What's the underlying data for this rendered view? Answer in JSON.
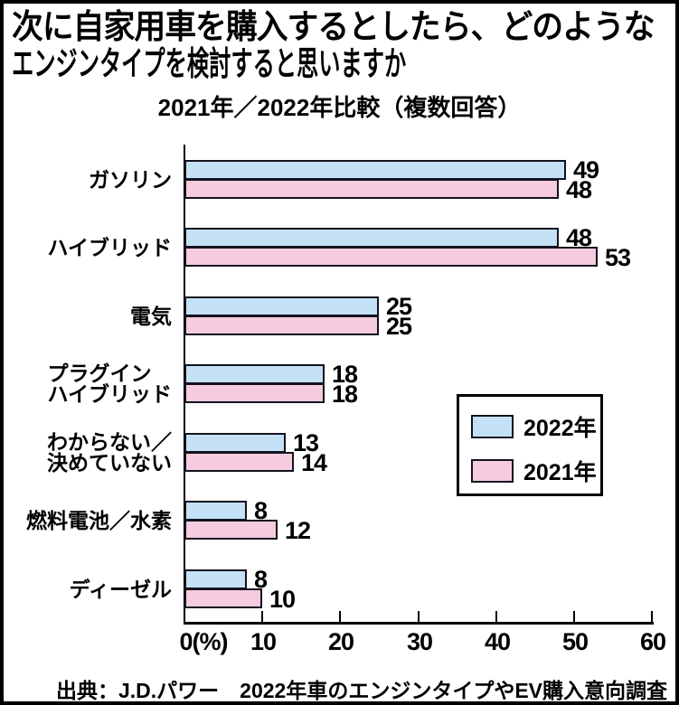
{
  "title": {
    "line1": "次に自家用車を購入するとしたら、どのような",
    "line2": "エンジンタイプを検討すると思いますか"
  },
  "subtitle": "2021年／2022年比較（複数回答）",
  "source": "出典：J.D.パワー　2022年車のエンジンタイプやEV購入意向調査",
  "legend": {
    "items": [
      {
        "label": "2022年",
        "color": "#c5e1f5"
      },
      {
        "label": "2021年",
        "color": "#f5cbdd"
      }
    ]
  },
  "chart_data": {
    "type": "bar",
    "orientation": "horizontal",
    "title": "次に自家用車を購入するとしたら、どのようなエンジンタイプを検討すると思いますか",
    "subtitle": "2021年／2022年比較（複数回答）",
    "categories": [
      "ガソリン",
      "ハイブリッド",
      "電気",
      "プラグインハイブリッド",
      "わからない／決めていない",
      "燃料電池／水素",
      "ディーゼル"
    ],
    "category_lines": [
      [
        "ガソリン"
      ],
      [
        "ハイブリッド"
      ],
      [
        "電気"
      ],
      [
        "プラグイン",
        "ハイブリッド"
      ],
      [
        "わからない／",
        "決めていない"
      ],
      [
        "燃料電池／水素"
      ],
      [
        "ディーゼル"
      ]
    ],
    "category_slugs": [
      "gasoline",
      "hybrid",
      "electric",
      "plugin-hybrid",
      "undecided",
      "fuel-cell-hydrogen",
      "diesel"
    ],
    "series": [
      {
        "name": "2022年",
        "color": "#c5e1f5",
        "values": [
          49,
          48,
          25,
          18,
          13,
          8,
          8
        ]
      },
      {
        "name": "2021年",
        "color": "#f5cbdd",
        "values": [
          48,
          53,
          25,
          18,
          14,
          12,
          10
        ]
      }
    ],
    "value_labels": true,
    "xlabel": "0(%)",
    "xlim": [
      0,
      60
    ],
    "x_ticks": [
      {
        "value": 0,
        "label": "0(%)"
      },
      {
        "value": 10,
        "label": "10"
      },
      {
        "value": 20,
        "label": "20"
      },
      {
        "value": 30,
        "label": "30"
      },
      {
        "value": 40,
        "label": "40"
      },
      {
        "value": 50,
        "label": "50"
      },
      {
        "value": 60,
        "label": "60"
      }
    ],
    "grid": false,
    "legend_position": "middle-right",
    "source": "出典：J.D.パワー　2022年車のエンジンタイプやEV購入意向調査"
  },
  "colors": {
    "bar_blue": "#c5e1f5",
    "bar_pink": "#f5cbdd",
    "bar_border": "#13131f",
    "frame": "#000000",
    "text": "#000000"
  }
}
